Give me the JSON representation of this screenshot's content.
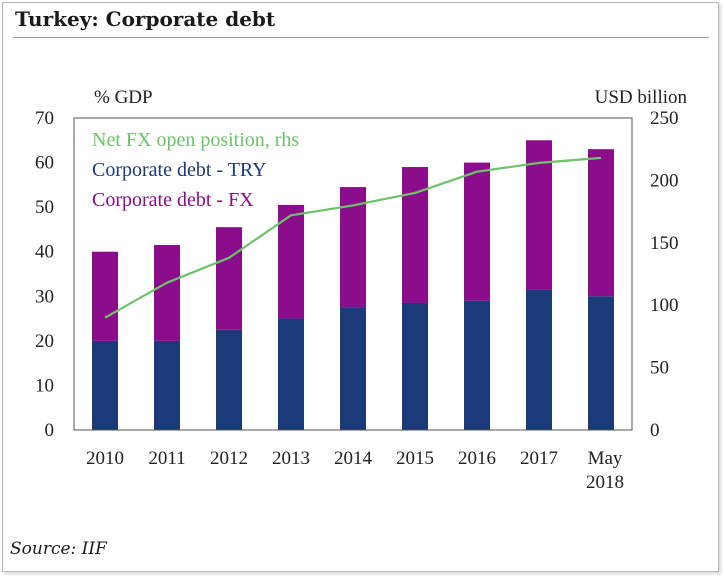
{
  "page": {
    "title": "Turkey: Corporate debt",
    "source": "Source: IIF"
  },
  "chart_data": {
    "type": "bar",
    "stacked": true,
    "categories": [
      "2010",
      "2011",
      "2012",
      "2013",
      "2014",
      "2015",
      "2016",
      "2017",
      "May\n2018"
    ],
    "series": [
      {
        "name": "Corporate debt - TRY",
        "axis": "left",
        "color": "#1b3a7a",
        "values": [
          20,
          20,
          22.5,
          25,
          27.5,
          28.5,
          29,
          31.5,
          30
        ]
      },
      {
        "name": "Corporate debt - FX",
        "axis": "left",
        "color": "#8b0d8b",
        "values": [
          20,
          21.5,
          23,
          25.5,
          27,
          30.5,
          31,
          33.5,
          33
        ]
      },
      {
        "name": "Net FX open position, rhs",
        "type": "line",
        "axis": "right",
        "color": "#6cc36a",
        "values": [
          90,
          118,
          138,
          172,
          180,
          190,
          207,
          214,
          218
        ]
      }
    ],
    "legend_order": [
      "Net FX open position, rhs",
      "Corporate debt - TRY",
      "Corporate debt - FX"
    ],
    "ylabel": "% GDP",
    "y2label": "USD billion",
    "ylim": [
      0,
      70
    ],
    "yticks": [
      0,
      10,
      20,
      30,
      40,
      50,
      60,
      70
    ],
    "y2lim": [
      0,
      250
    ],
    "y2ticks": [
      0,
      50,
      100,
      150,
      200,
      250
    ],
    "grid": false,
    "legend_position": "top-left (inside plot)"
  }
}
